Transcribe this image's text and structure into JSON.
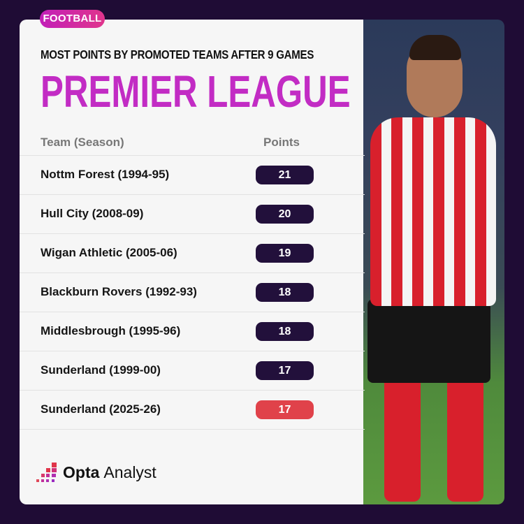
{
  "tag": "FOOTBALL",
  "subtitle": "MOST POINTS BY PROMOTED TEAMS AFTER 9 GAMES",
  "title": "PREMIER LEAGUE",
  "columns": {
    "team": "Team (Season)",
    "points": "Points"
  },
  "rows": [
    {
      "team": "Nottm Forest (1994-95)",
      "points": "21"
    },
    {
      "team": "Hull City (2008-09)",
      "points": "20"
    },
    {
      "team": "Wigan Athletic (2005-06)",
      "points": "19"
    },
    {
      "team": "Blackburn Rovers (1992-93)",
      "points": "18"
    },
    {
      "team": "Middlesbrough (1995-96)",
      "points": "18"
    },
    {
      "team": "Sunderland (1999-00)",
      "points": "17"
    },
    {
      "team": "Sunderland (2025-26)",
      "points": "17",
      "highlight": true
    }
  ],
  "colors": {
    "background": "#1f0c35",
    "accent": "#c22cc4",
    "pill": "#22103b",
    "highlight": "#e0424a"
  },
  "logo": {
    "bold": "Opta",
    "light": "Analyst"
  }
}
